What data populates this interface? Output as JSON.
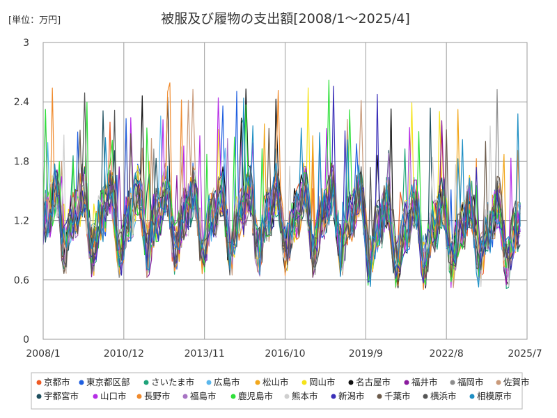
{
  "chart_data": {
    "type": "line",
    "title": "被服及び履物の支出額[2008/1～2025/4]",
    "unit_label": "[単位：万円]",
    "ylim": [
      0,
      3
    ],
    "yticks": [
      "0",
      "0.6",
      "1.2",
      "1.8",
      "2.4",
      "3"
    ],
    "x_start": "2008/1",
    "x_end": "2025/7",
    "xticks": [
      "2008/1",
      "2010/12",
      "2013/11",
      "2016/10",
      "2019/9",
      "2022/8",
      "2025/7"
    ],
    "grid": true,
    "legend_position": "bottom",
    "series": [
      {
        "name": "京都市",
        "color": "#ef5a24"
      },
      {
        "name": "東京都区部",
        "color": "#1f5fe0"
      },
      {
        "name": "さいたま市",
        "color": "#1fa37a"
      },
      {
        "name": "広島市",
        "color": "#5bb7ec"
      },
      {
        "name": "松山市",
        "color": "#f2a71c"
      },
      {
        "name": "岡山市",
        "color": "#f5e31a"
      },
      {
        "name": "名古屋市",
        "color": "#111111"
      },
      {
        "name": "福井市",
        "color": "#8a1b9e"
      },
      {
        "name": "福岡市",
        "color": "#8c8c8c"
      },
      {
        "name": "佐賀市",
        "color": "#c99a7a"
      },
      {
        "name": "宇都宮市",
        "color": "#1e4f5e"
      },
      {
        "name": "山口市",
        "color": "#b52de6"
      },
      {
        "name": "長野市",
        "color": "#f08a2c"
      },
      {
        "name": "福島市",
        "color": "#a874c4"
      },
      {
        "name": "鹿児島市",
        "color": "#2fe03a"
      },
      {
        "name": "熊本市",
        "color": "#cfcfcf"
      },
      {
        "name": "新潟市",
        "color": "#3a2fb8"
      },
      {
        "name": "千葉市",
        "color": "#6b5a4a"
      },
      {
        "name": "横浜市",
        "color": "#555555"
      },
      {
        "name": "相模原市",
        "color": "#1f8fc4"
      }
    ]
  }
}
